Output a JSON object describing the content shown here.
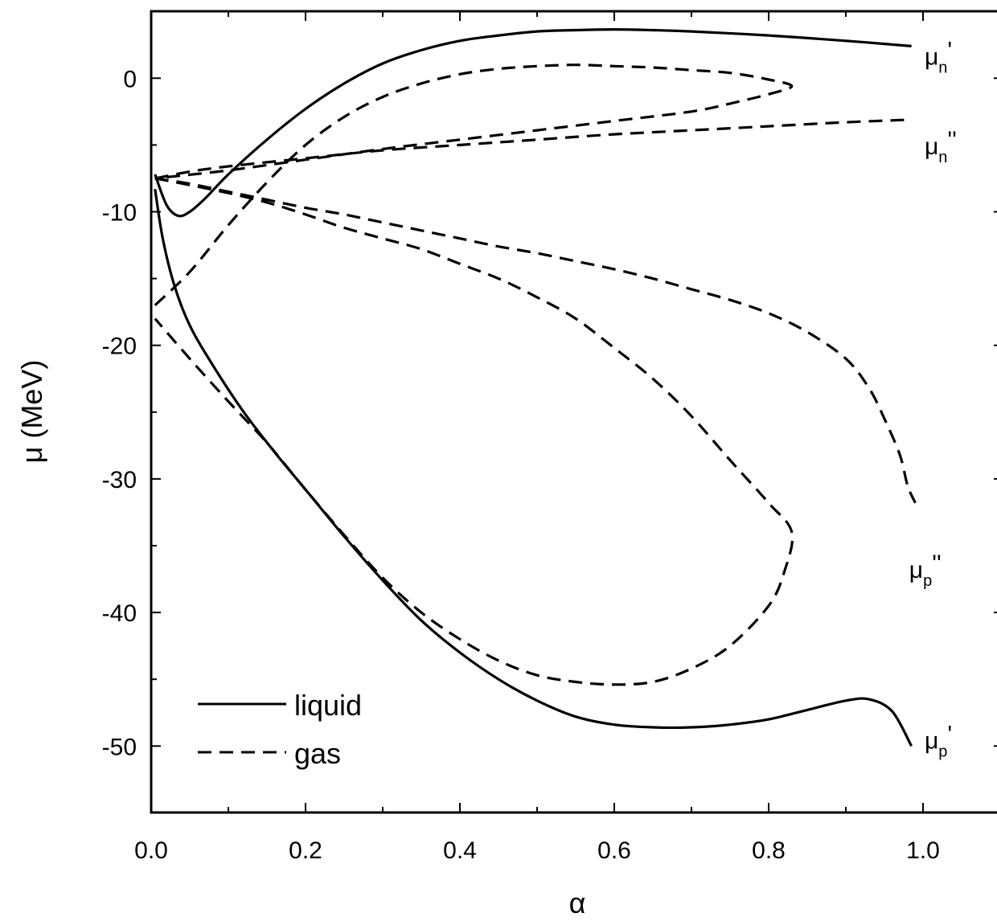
{
  "chart_data": {
    "type": "line",
    "title": "",
    "xlabel": "α",
    "ylabel": "μ (MeV)",
    "xlim": [
      0.0,
      1.1
    ],
    "ylim": [
      -55,
      5
    ],
    "xticks": [
      0.0,
      0.2,
      0.4,
      0.6,
      0.8,
      1.0
    ],
    "xtick_labels": [
      "0.0",
      "0.2",
      "0.4",
      "0.6",
      "0.8",
      "1.0"
    ],
    "yticks": [
      0,
      -10,
      -20,
      -30,
      -40,
      -50
    ],
    "ytick_labels": [
      "0",
      "-10",
      "-20",
      "-30",
      "-40",
      "-50"
    ],
    "grid": false,
    "legend_position": "bottom-left",
    "legend": [
      {
        "label": "liquid",
        "style": "solid"
      },
      {
        "label": "gas",
        "style": "dashed"
      }
    ],
    "curve_labels": [
      {
        "main": "μ",
        "sub": "n",
        "prime": "'",
        "at": [
          1.0,
          1.0
        ]
      },
      {
        "main": "μ",
        "sub": "n",
        "prime": "''",
        "at": [
          1.0,
          -5.7
        ]
      },
      {
        "main": "μ",
        "sub": "p",
        "prime": "''",
        "at": [
          0.98,
          -37.4
        ]
      },
      {
        "main": "μ",
        "sub": "p",
        "prime": "'",
        "at": [
          1.0,
          -50.2
        ]
      }
    ],
    "series": [
      {
        "style": "solid",
        "x": [
          0.005,
          0.02,
          0.035,
          0.05,
          0.07,
          0.1,
          0.15,
          0.2,
          0.25,
          0.3,
          0.35,
          0.4,
          0.45,
          0.5,
          0.55,
          0.6,
          0.65,
          0.7,
          0.8,
          0.9,
          0.985
        ],
        "y": [
          -7.2,
          -9.5,
          -10.3,
          -10.0,
          -9.0,
          -7.2,
          -4.6,
          -2.3,
          -0.4,
          1.1,
          2.1,
          2.8,
          3.2,
          3.5,
          3.6,
          3.65,
          3.6,
          3.5,
          3.2,
          2.8,
          2.4
        ]
      },
      {
        "style": "solid",
        "x": [
          0.005,
          0.015,
          0.03,
          0.05,
          0.08,
          0.12,
          0.16,
          0.2,
          0.25,
          0.3,
          0.35,
          0.4,
          0.45,
          0.5,
          0.55,
          0.6,
          0.65,
          0.7,
          0.75,
          0.8,
          0.85,
          0.9,
          0.93,
          0.96,
          0.985
        ],
        "y": [
          -8.3,
          -12.0,
          -15.5,
          -18.5,
          -21.5,
          -25.0,
          -28.0,
          -30.8,
          -34.3,
          -37.6,
          -40.6,
          -43.0,
          -45.0,
          -46.6,
          -47.8,
          -48.4,
          -48.6,
          -48.6,
          -48.4,
          -48.0,
          -47.3,
          -46.6,
          -46.5,
          -47.4,
          -50.0
        ]
      },
      {
        "style": "dashed",
        "x": [
          0.005,
          0.05,
          0.1,
          0.15,
          0.2,
          0.25,
          0.3,
          0.35,
          0.4,
          0.45,
          0.5,
          0.55,
          0.6,
          0.65,
          0.7,
          0.75,
          0.8,
          0.83,
          0.8,
          0.75,
          0.7,
          0.6,
          0.5,
          0.4,
          0.3,
          0.2,
          0.1,
          0.005
        ],
        "y": [
          -17.0,
          -14.5,
          -11.0,
          -7.8,
          -5.0,
          -2.9,
          -1.4,
          -0.4,
          0.3,
          0.7,
          0.9,
          1.0,
          0.9,
          0.8,
          0.6,
          0.4,
          -0.1,
          -0.6,
          -1.2,
          -1.9,
          -2.5,
          -3.2,
          -3.9,
          -4.6,
          -5.3,
          -6.1,
          -6.9,
          -7.5
        ]
      },
      {
        "style": "dashed",
        "x": [
          0.005,
          0.05,
          0.1,
          0.2,
          0.3,
          0.4,
          0.5,
          0.6,
          0.7,
          0.8,
          0.9,
          0.985
        ],
        "y": [
          -7.5,
          -7.0,
          -6.6,
          -6.0,
          -5.4,
          -5.0,
          -4.6,
          -4.2,
          -3.9,
          -3.6,
          -3.3,
          -3.1
        ]
      },
      {
        "style": "dashed",
        "x": [
          0.005,
          0.05,
          0.1,
          0.15,
          0.2,
          0.25,
          0.3,
          0.35,
          0.4,
          0.45,
          0.5,
          0.55,
          0.6,
          0.65,
          0.7,
          0.75,
          0.8,
          0.83,
          0.82,
          0.8,
          0.75,
          0.7,
          0.65,
          0.6,
          0.55,
          0.5,
          0.45,
          0.4,
          0.35,
          0.3,
          0.25,
          0.2,
          0.15,
          0.1,
          0.05,
          0.005
        ],
        "y": [
          -7.5,
          -8.0,
          -8.6,
          -9.3,
          -10.2,
          -11.2,
          -12.0,
          -12.8,
          -13.9,
          -15.0,
          -16.4,
          -18.0,
          -20.2,
          -22.5,
          -25.3,
          -28.6,
          -31.8,
          -34.0,
          -37.0,
          -39.5,
          -42.5,
          -44.2,
          -45.2,
          -45.4,
          -45.2,
          -44.7,
          -43.6,
          -42.0,
          -40.0,
          -37.4,
          -34.2,
          -30.8,
          -27.3,
          -24.2,
          -21.0,
          -18.0
        ]
      },
      {
        "style": "dashed",
        "x": [
          0.005,
          0.05,
          0.1,
          0.15,
          0.2,
          0.25,
          0.3,
          0.35,
          0.4,
          0.45,
          0.5,
          0.55,
          0.6,
          0.65,
          0.7,
          0.75,
          0.8,
          0.85,
          0.9,
          0.93,
          0.95,
          0.97,
          0.98,
          0.99
        ],
        "y": [
          -7.5,
          -7.9,
          -8.5,
          -9.1,
          -9.7,
          -10.2,
          -10.8,
          -11.4,
          -12.0,
          -12.6,
          -13.1,
          -13.7,
          -14.3,
          -15.0,
          -15.8,
          -16.6,
          -17.6,
          -19.0,
          -21.0,
          -23.2,
          -25.5,
          -28.2,
          -30.5,
          -31.8
        ]
      }
    ]
  }
}
